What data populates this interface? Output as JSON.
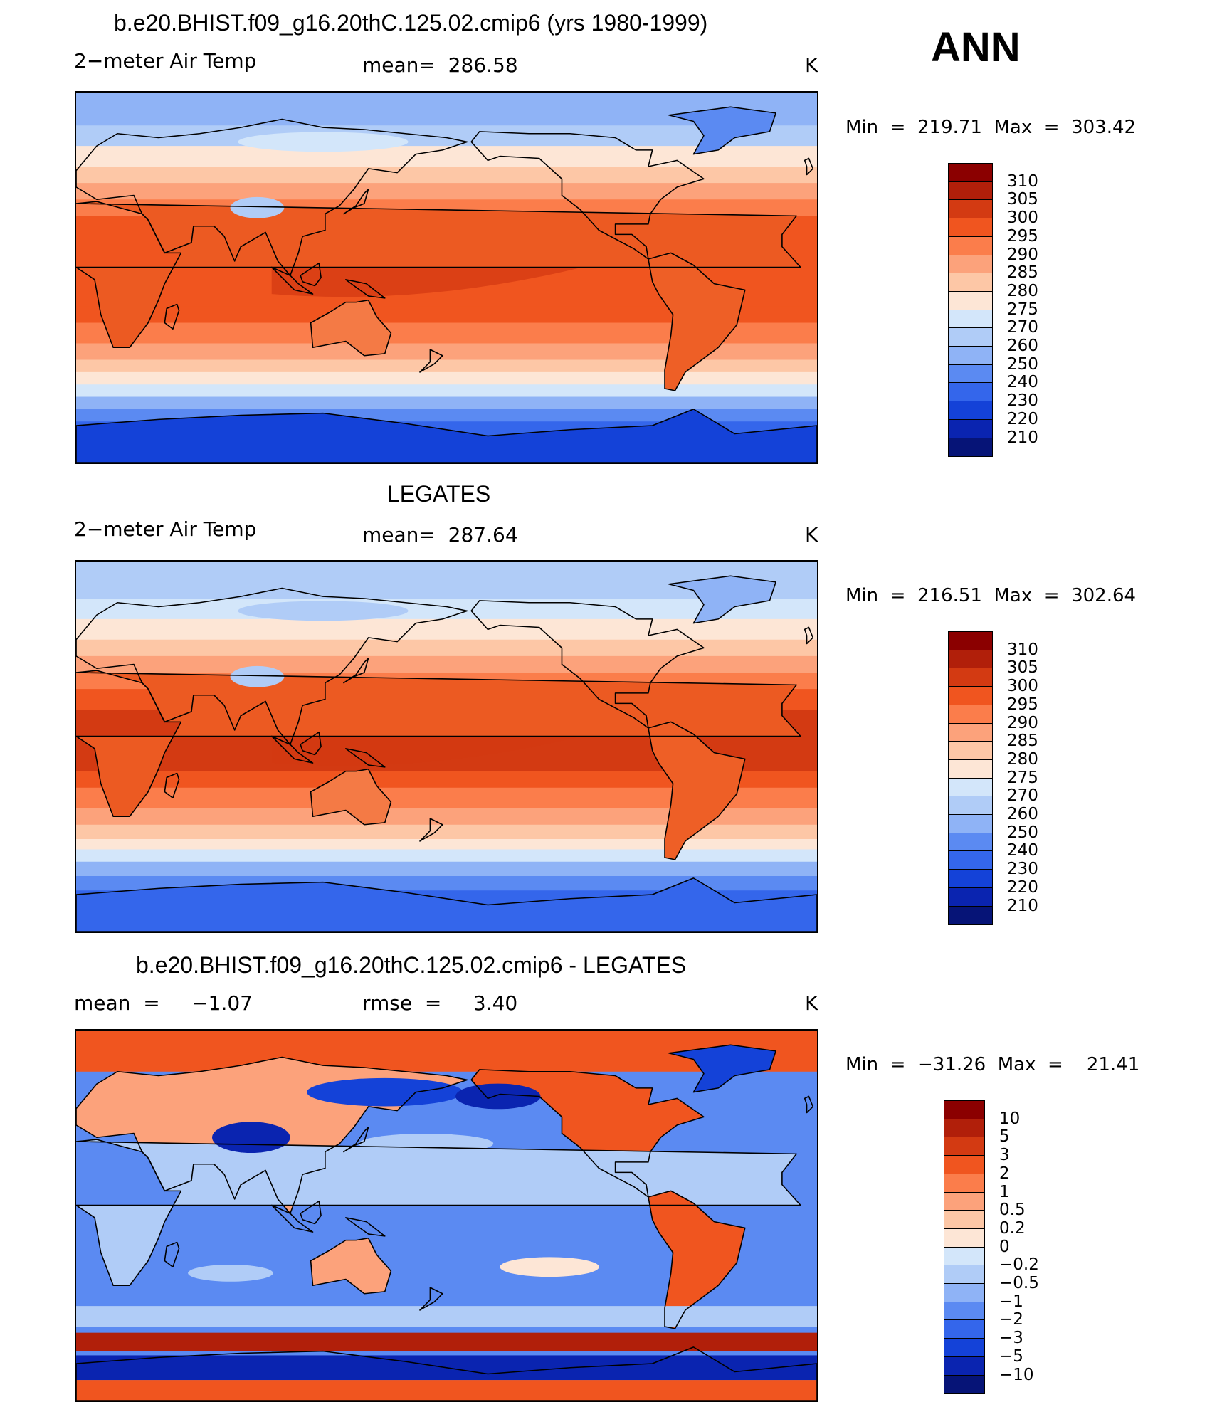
{
  "ann_label": "ANN",
  "panels": [
    {
      "title": "b.e20.BHIST.f09_g16.20thC.125.02.cmip6 (yrs 1980-1999)",
      "left_label": "2−meter Air Temp",
      "center_label": "mean=  286.58",
      "units": "K",
      "minmax": "Min  =  219.71  Max  =  303.42",
      "field": "model",
      "colorbar": {
        "labels": [
          "310",
          "305",
          "300",
          "295",
          "290",
          "285",
          "280",
          "275",
          "270",
          "260",
          "250",
          "240",
          "230",
          "220",
          "210"
        ],
        "colors": [
          "#8b0000",
          "#b11f0a",
          "#d33a12",
          "#f0551f",
          "#fb7d4b",
          "#fca27b",
          "#fdc7a6",
          "#fde6d6",
          "#d3e6fa",
          "#b0ccf7",
          "#8fb3f6",
          "#5b8af2",
          "#3466eb",
          "#1442d8",
          "#0a24b0",
          "#061477"
        ]
      }
    },
    {
      "title": "LEGATES",
      "left_label": "2−meter Air Temp",
      "center_label": "mean=  287.64",
      "units": "K",
      "minmax": "Min  =  216.51  Max  =  302.64",
      "field": "obs",
      "colorbar": {
        "labels": [
          "310",
          "305",
          "300",
          "295",
          "290",
          "285",
          "280",
          "275",
          "270",
          "260",
          "250",
          "240",
          "230",
          "220",
          "210"
        ],
        "colors": [
          "#8b0000",
          "#b11f0a",
          "#d33a12",
          "#f0551f",
          "#fb7d4b",
          "#fca27b",
          "#fdc7a6",
          "#fde6d6",
          "#d3e6fa",
          "#b0ccf7",
          "#8fb3f6",
          "#5b8af2",
          "#3466eb",
          "#1442d8",
          "#0a24b0",
          "#061477"
        ]
      }
    },
    {
      "title": "b.e20.BHIST.f09_g16.20thC.125.02.cmip6 - LEGATES",
      "left_label": "mean  =     −1.07",
      "center_label": "rmse  =     3.40",
      "units": "K",
      "minmax": "Min  =  −31.26  Max  =    21.41",
      "field": "diff",
      "colorbar": {
        "labels": [
          "10",
          "5",
          "3",
          "2",
          "1",
          "0.5",
          "0.2",
          "0",
          "−0.2",
          "−0.5",
          "−1",
          "−2",
          "−3",
          "−5",
          "−10"
        ],
        "colors": [
          "#8b0000",
          "#b11f0a",
          "#d33a12",
          "#f0551f",
          "#fb7d4b",
          "#fca27b",
          "#fdc7a6",
          "#fde6d6",
          "#d3e6fa",
          "#b0ccf7",
          "#8fb3f6",
          "#5b8af2",
          "#3466eb",
          "#1442d8",
          "#0a24b0",
          "#061477"
        ]
      }
    }
  ]
}
